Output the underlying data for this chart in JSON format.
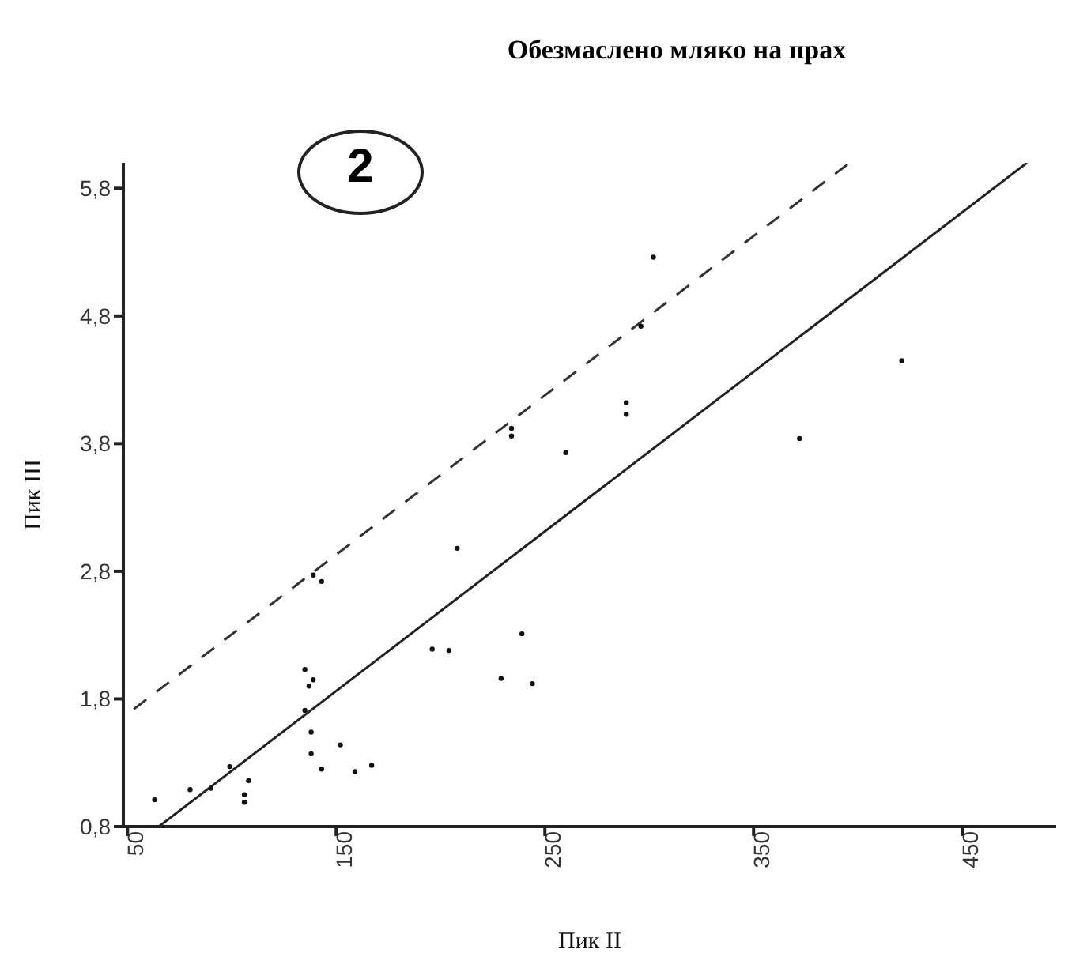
{
  "chart_data": {
    "type": "scatter",
    "title": "Обезмаслено мляко на прах",
    "xlabel": "Пик II",
    "ylabel": "Пик III",
    "annotations": [
      "2"
    ],
    "xlim": [
      48,
      495
    ],
    "ylim": [
      0.8,
      6.0
    ],
    "xticks": [
      50,
      150,
      250,
      350,
      450
    ],
    "yticks": [
      {
        "value": 0.8,
        "label": "0,8"
      },
      {
        "value": 1.8,
        "label": "1,8"
      },
      {
        "value": 2.8,
        "label": "2,8"
      },
      {
        "value": 3.8,
        "label": "3,8"
      },
      {
        "value": 4.8,
        "label": "4,8"
      },
      {
        "value": 5.8,
        "label": "5,8"
      }
    ],
    "grid": false,
    "legend": false,
    "marker": "circle",
    "series": [
      {
        "color": "#111111",
        "x": [
          63,
          80,
          90,
          99,
          106,
          106,
          108,
          135,
          137,
          139,
          135,
          138,
          138,
          143,
          139,
          143,
          152,
          159,
          167,
          196,
          204,
          208,
          229,
          239,
          244,
          234,
          234,
          260,
          289,
          289,
          296,
          302,
          372,
          421
        ],
        "values": [
          1.01,
          1.09,
          1.1,
          1.27,
          1.05,
          0.99,
          1.16,
          2.03,
          1.9,
          1.95,
          1.71,
          1.54,
          1.37,
          1.25,
          2.77,
          2.72,
          1.44,
          1.23,
          1.28,
          2.19,
          2.18,
          2.98,
          1.96,
          2.31,
          1.92,
          3.92,
          3.86,
          3.73,
          4.12,
          4.03,
          4.72,
          5.26,
          3.84,
          4.45
        ]
      },
      {
        "type": "line",
        "color": "#222222",
        "line_style": "solid",
        "marker": "none",
        "x": [
          65,
          481
        ],
        "values": [
          0.8,
          6.0
        ]
      },
      {
        "type": "line",
        "color": "#333333",
        "line_style": "dashed",
        "marker": "none",
        "x": [
          53,
          396
        ],
        "values": [
          1.72,
          6.0
        ]
      }
    ]
  }
}
